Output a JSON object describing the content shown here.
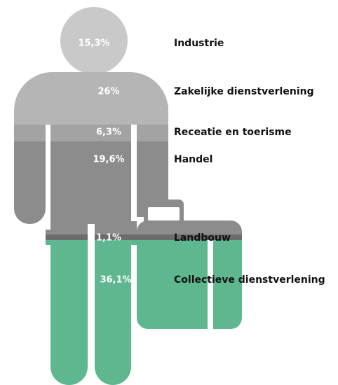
{
  "chart_data": {
    "type": "pictogram",
    "categories": [
      "Industrie",
      "Zakelijke dienstverlening",
      "Receatie en toerisme",
      "Handel",
      "Landbouw",
      "Collectieve dienstverlening"
    ],
    "values": [
      15.3,
      26,
      6.3,
      19.6,
      1.1,
      36.1
    ],
    "value_labels": [
      "15,3%",
      "26%",
      "6,3%",
      "19,6%",
      "1,1%",
      "36,1%"
    ],
    "colors": [
      "#c9c9c9",
      "#b5b5b5",
      "#a3a3a3",
      "#8c8c8c",
      "#6c6c6c",
      "#5fb78f"
    ]
  }
}
